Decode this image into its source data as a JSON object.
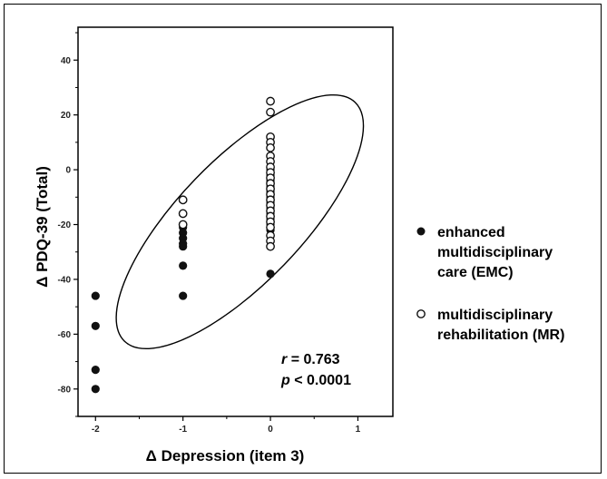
{
  "chart_data": {
    "type": "scatter",
    "xlabel": "Δ Depression (item 3)",
    "ylabel": "Δ PDQ-39 (Total)",
    "xlim": [
      -2.2,
      1.4
    ],
    "ylim": [
      -90,
      52
    ],
    "x_ticks": [
      -2,
      -1,
      0,
      1
    ],
    "y_ticks": [
      40,
      20,
      0,
      -20,
      -40,
      -60,
      -80
    ],
    "x_tick_labels": [
      "-2",
      "-1",
      "0",
      "1"
    ],
    "y_tick_labels": [
      "40",
      "20",
      "0",
      "-20",
      "-40",
      "-60",
      "-80"
    ],
    "grid": false,
    "legend_position": "right",
    "series": [
      {
        "name": "enhanced multidisciplinary care (EMC)",
        "marker": "filled-circle",
        "color": "#111111",
        "points": [
          [
            -2,
            -46
          ],
          [
            -2,
            -57
          ],
          [
            -2,
            -73
          ],
          [
            -2,
            -80
          ],
          [
            -1,
            -21
          ],
          [
            -1,
            -23
          ],
          [
            -1,
            -25
          ],
          [
            -1,
            -27
          ],
          [
            -1,
            -28
          ],
          [
            -1,
            -35
          ],
          [
            -1,
            -46
          ],
          [
            0,
            -38
          ],
          [
            0,
            0
          ],
          [
            0,
            -2
          ],
          [
            0,
            -4
          ],
          [
            0,
            -6
          ],
          [
            0,
            -8
          ],
          [
            0,
            -10
          ],
          [
            0,
            -12
          ],
          [
            0,
            -14
          ],
          [
            0,
            -16
          ],
          [
            0,
            -18
          ],
          [
            0,
            -20
          ],
          [
            0,
            -22
          ]
        ]
      },
      {
        "name": "multidisciplinary rehabilitation (MR)",
        "marker": "open-circle",
        "color": "#111111",
        "points": [
          [
            -1,
            -11
          ],
          [
            -1,
            -16
          ],
          [
            -1,
            -20
          ],
          [
            0,
            25
          ],
          [
            0,
            21
          ],
          [
            0,
            12
          ],
          [
            0,
            10
          ],
          [
            0,
            8
          ],
          [
            0,
            5
          ],
          [
            0,
            3
          ],
          [
            0,
            1
          ],
          [
            0,
            -1
          ],
          [
            0,
            -3
          ],
          [
            0,
            -5
          ],
          [
            0,
            -7
          ],
          [
            0,
            -9
          ],
          [
            0,
            -11
          ],
          [
            0,
            -13
          ],
          [
            0,
            -15
          ],
          [
            0,
            -17
          ],
          [
            0,
            -19
          ],
          [
            0,
            -21
          ],
          [
            0,
            -24
          ],
          [
            0,
            -26
          ],
          [
            0,
            -28
          ]
        ]
      }
    ],
    "ellipse": {
      "cx": -0.35,
      "cy": -19,
      "rx_along_major": 1.55,
      "tilt_note": "confidence ellipse"
    },
    "annotation": {
      "r_symbol": "r",
      "r_value": "= 0.763",
      "p_symbol": "p",
      "p_value": "< 0.0001"
    },
    "legend": [
      {
        "line1": "enhanced",
        "line2": "multidisciplinary",
        "line3": "care (EMC)"
      },
      {
        "line1": "multidisciplinary",
        "line2": "rehabilitation (MR)"
      }
    ]
  }
}
